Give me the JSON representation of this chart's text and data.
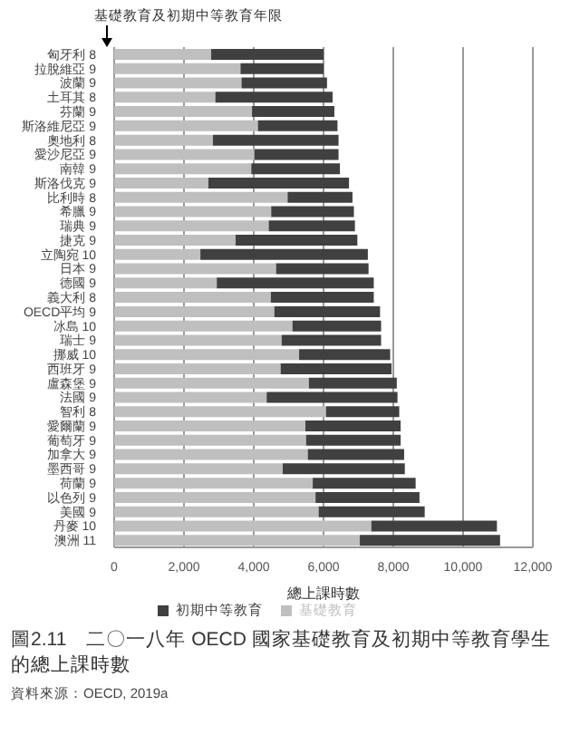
{
  "chart_data": {
    "type": "bar",
    "orientation": "horizontal",
    "stacked": true,
    "title": "圖2.11　二〇一八年 OECD 國家基礎教育及初期中等教育學生的總上課時數",
    "xlabel": "總上課時數",
    "annotations": [
      "基礎教育及初期中等教育年限",
      "資料來源：OECD, 2019a"
    ],
    "categories": [
      "匈牙利 8",
      "拉脫維亞 9",
      "波蘭 9",
      "土耳其 8",
      "芬蘭 9",
      "斯洛維尼亞 9",
      "奧地利 8",
      "愛沙尼亞 9",
      "南韓 9",
      "斯洛伐克 9",
      "比利時 8",
      "希臘 9",
      "瑞典 9",
      "捷克 9",
      "立陶宛 10",
      "日本 9",
      "德國 9",
      "義大利 8",
      "OECD平均 9",
      "冰島 10",
      "瑞士 9",
      "挪威 10",
      "西班牙 9",
      "盧森堡 9",
      "法國 9",
      "智利 8",
      "愛爾蘭 9",
      "葡萄牙 9",
      "加拿大 9",
      "墨西哥 9",
      "荷蘭 9",
      "以色列 9",
      "美國 9",
      "丹麥 10",
      "澳洲 11"
    ],
    "series": [
      {
        "name": "基礎教育",
        "color": "#bfbfbf",
        "values": [
          2780,
          3620,
          3650,
          2900,
          3950,
          4120,
          2830,
          4020,
          3930,
          2700,
          4970,
          4500,
          4430,
          3480,
          2470,
          4640,
          2940,
          4490,
          4590,
          5110,
          4800,
          5300,
          4770,
          5580,
          4370,
          6070,
          5480,
          5500,
          5550,
          4830,
          5690,
          5770,
          5860,
          7370,
          7040
        ]
      },
      {
        "name": "初期中等教育",
        "color": "#404040",
        "values": [
          3220,
          2380,
          2450,
          3360,
          2360,
          2280,
          3600,
          2410,
          2540,
          4030,
          1860,
          2370,
          2470,
          3490,
          4800,
          2650,
          4500,
          2950,
          3030,
          2540,
          2850,
          2610,
          3180,
          2520,
          3750,
          2100,
          2730,
          2710,
          2760,
          3500,
          2950,
          2980,
          3040,
          3600,
          4020
        ]
      }
    ],
    "xlim": [
      0,
      12000
    ],
    "xticks": [
      0,
      {
        "value": 2000,
        "label": "2,000"
      },
      {
        "value": 4000,
        "label": "4,000"
      },
      {
        "value": 6000,
        "label": "6,000"
      },
      {
        "value": 8000,
        "label": "8,000"
      },
      {
        "value": 10000,
        "label": "10,000"
      },
      {
        "value": 12000,
        "label": "12,000"
      }
    ],
    "grid": "x",
    "legend": "bottom"
  }
}
